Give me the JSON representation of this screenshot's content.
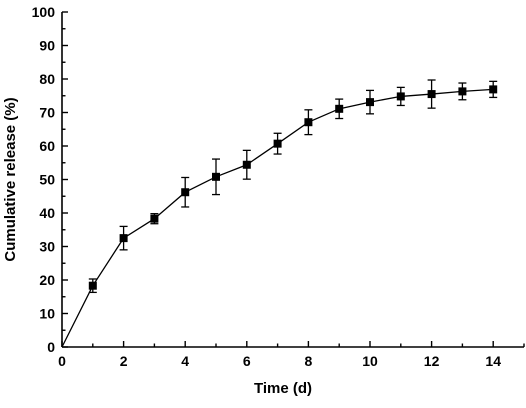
{
  "chart_data": {
    "type": "line",
    "xlabel": "Time (d)",
    "ylabel": "Cumulative release (%)",
    "xlim": [
      0,
      15
    ],
    "ylim": [
      0,
      100
    ],
    "x_ticks": [
      0,
      2,
      4,
      6,
      8,
      10,
      12,
      14
    ],
    "y_ticks": [
      0,
      10,
      20,
      30,
      40,
      50,
      60,
      70,
      80,
      90,
      100
    ],
    "grid": false,
    "series": [
      {
        "x": [
          0,
          1,
          2,
          3,
          4,
          5,
          6,
          7,
          8,
          9,
          10,
          11,
          12,
          13,
          14
        ],
        "y": [
          0,
          18.3,
          32.5,
          38.3,
          46.2,
          50.8,
          54.4,
          60.7,
          67.1,
          71.1,
          73.1,
          74.8,
          75.5,
          76.3,
          76.9
        ],
        "error": [
          0,
          2.0,
          3.5,
          1.5,
          4.4,
          5.3,
          4.3,
          3.1,
          3.7,
          2.9,
          3.5,
          2.7,
          4.2,
          2.5,
          2.4
        ]
      }
    ]
  }
}
